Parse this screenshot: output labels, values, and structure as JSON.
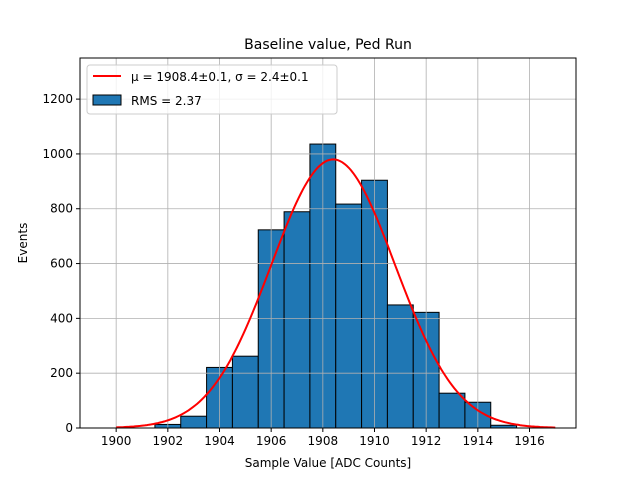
{
  "chart_data": {
    "type": "bar",
    "title": "Baseline value, Ped Run",
    "xlabel": "Sample Value [ADC Counts]",
    "ylabel": "Events",
    "xlim": [
      1898.6,
      1917.8
    ],
    "ylim": [
      0,
      1350
    ],
    "grid": true,
    "xticks": [
      1900,
      1902,
      1904,
      1906,
      1908,
      1910,
      1912,
      1914,
      1916
    ],
    "yticks": [
      0,
      200,
      400,
      600,
      800,
      1000,
      1200
    ],
    "bin_width": 1,
    "bin_left_edges": [
      1901.5,
      1902.5,
      1903.5,
      1904.5,
      1905.5,
      1906.5,
      1907.5,
      1908.5,
      1909.5,
      1910.5,
      1911.5,
      1912.5,
      1913.5,
      1914.5
    ],
    "values": [
      13,
      43,
      221,
      262,
      723,
      789,
      1036,
      817,
      904,
      449,
      422,
      127,
      94,
      10
    ],
    "bar_color": "#1f77b4",
    "fit": {
      "mu": 1908.4,
      "sigma": 2.4,
      "amplitude": 980,
      "x_range": [
        1900,
        1917
      ],
      "color": "#ff0000"
    },
    "legend": {
      "placement": "top-left",
      "entries": [
        {
          "label": "μ = 1908.4±0.1, σ = 2.4±0.1",
          "type": "line",
          "color": "#ff0000"
        },
        {
          "label": "RMS = 2.37",
          "type": "patch",
          "color": "#1f77b4"
        }
      ]
    }
  }
}
